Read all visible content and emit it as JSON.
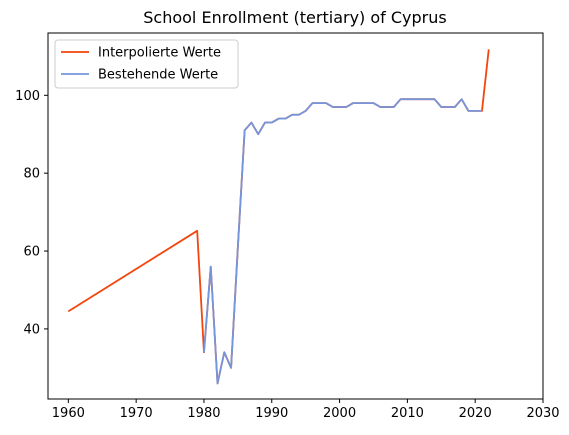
{
  "chart_data": {
    "type": "line",
    "title": "School Enrollment (tertiary) of Cyprus",
    "xlabel": "",
    "ylabel": "",
    "xlim": [
      1957,
      2030
    ],
    "ylim": [
      22,
      116
    ],
    "x_ticks": [
      1960,
      1970,
      1980,
      1990,
      2000,
      2010,
      2020,
      2030
    ],
    "y_ticks": [
      40,
      60,
      80,
      100
    ],
    "grid": false,
    "legend": "top-left",
    "series": [
      {
        "name": "Interpolierte Werte",
        "color": "#f2460c",
        "points": [
          [
            1960,
            44.5
          ],
          [
            1979,
            65.2
          ],
          [
            1980,
            34
          ],
          [
            1981,
            56
          ],
          [
            1982,
            26
          ],
          [
            1983,
            34
          ],
          [
            1984,
            30
          ],
          [
            1985,
            61
          ],
          [
            1986,
            91
          ],
          [
            1987,
            93
          ],
          [
            1988,
            90
          ],
          [
            1989,
            93
          ],
          [
            1990,
            93
          ],
          [
            1991,
            94
          ],
          [
            1992,
            94
          ],
          [
            1993,
            95
          ],
          [
            1994,
            95
          ],
          [
            1995,
            96
          ],
          [
            1996,
            98
          ],
          [
            1997,
            98
          ],
          [
            1998,
            98
          ],
          [
            1999,
            97
          ],
          [
            2000,
            97
          ],
          [
            2001,
            97
          ],
          [
            2002,
            98
          ],
          [
            2003,
            98
          ],
          [
            2004,
            98
          ],
          [
            2005,
            98
          ],
          [
            2006,
            97
          ],
          [
            2007,
            97
          ],
          [
            2008,
            97
          ],
          [
            2009,
            99
          ],
          [
            2010,
            99
          ],
          [
            2011,
            99
          ],
          [
            2012,
            99
          ],
          [
            2013,
            99
          ],
          [
            2014,
            99
          ],
          [
            2015,
            97
          ],
          [
            2016,
            97
          ],
          [
            2017,
            97
          ],
          [
            2018,
            99
          ],
          [
            2019,
            96
          ],
          [
            2020,
            96
          ],
          [
            2021,
            96
          ],
          [
            2022,
            111.8
          ]
        ]
      },
      {
        "name": "Bestehende Werte",
        "color": "#7595dd",
        "points": [
          [
            1980,
            34
          ],
          [
            1981,
            56
          ],
          [
            1982,
            26
          ],
          [
            1983,
            34
          ],
          [
            1984,
            30
          ],
          [
            1985,
            61
          ],
          [
            1986,
            91
          ],
          [
            1987,
            93
          ],
          [
            1988,
            90
          ],
          [
            1989,
            93
          ],
          [
            1990,
            93
          ],
          [
            1991,
            94
          ],
          [
            1992,
            94
          ],
          [
            1993,
            95
          ],
          [
            1994,
            95
          ],
          [
            1995,
            96
          ],
          [
            1996,
            98
          ],
          [
            1997,
            98
          ],
          [
            1998,
            98
          ],
          [
            1999,
            97
          ],
          [
            2000,
            97
          ],
          [
            2001,
            97
          ],
          [
            2002,
            98
          ],
          [
            2003,
            98
          ],
          [
            2004,
            98
          ],
          [
            2005,
            98
          ],
          [
            2006,
            97
          ],
          [
            2007,
            97
          ],
          [
            2008,
            97
          ],
          [
            2009,
            99
          ],
          [
            2010,
            99
          ],
          [
            2011,
            99
          ],
          [
            2012,
            99
          ],
          [
            2013,
            99
          ],
          [
            2014,
            99
          ],
          [
            2015,
            97
          ],
          [
            2016,
            97
          ],
          [
            2017,
            97
          ],
          [
            2018,
            99
          ],
          [
            2019,
            96
          ],
          [
            2020,
            96
          ],
          [
            2021,
            96
          ]
        ]
      }
    ]
  }
}
